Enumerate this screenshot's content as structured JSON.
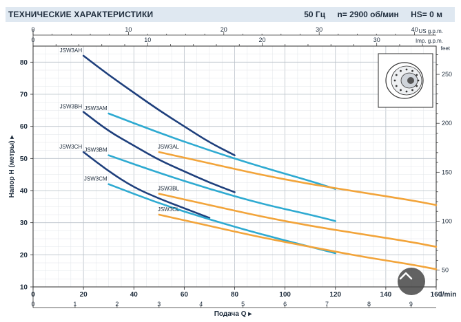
{
  "header": {
    "title": "ТЕХНИЧЕСКИЕ ХАРАКТЕРИСТИКИ",
    "freq": "50 Гц",
    "speed": "n= 2900 об/мин",
    "hs": "HS= 0 м"
  },
  "scroll_button_icon": "chevron-up-icon",
  "chart_data": {
    "type": "line",
    "xlabel": "Подача Q",
    "ylabel": "Напор H (метры)",
    "x_unit": "l/min",
    "xlim": [
      0,
      160
    ],
    "ylim": [
      10,
      85
    ],
    "x_ticks": [
      0,
      20,
      40,
      60,
      80,
      100,
      120,
      140,
      160
    ],
    "y_ticks": [
      10,
      20,
      30,
      40,
      50,
      60,
      70,
      80
    ],
    "m3h_ticks": [
      0,
      1,
      2,
      3,
      4,
      5,
      6,
      7,
      8,
      9
    ],
    "us_gpm": {
      "unit": "US g.p.m.",
      "ticks": [
        0,
        10,
        20,
        30,
        40
      ],
      "max": 42.27
    },
    "imp_gpm": {
      "unit": "Imp. g.p.m.",
      "ticks": [
        0,
        10,
        20,
        30
      ],
      "max": 35.19
    },
    "feet": {
      "unit": "feet",
      "ticks": [
        50,
        100,
        150,
        200,
        250
      ]
    },
    "colors": {
      "H": "#1e3f7c",
      "M": "#2eaad1",
      "L": "#f2a43a"
    },
    "series": [
      {
        "name": "JSW3AH",
        "group": "H",
        "x": [
          20,
          30,
          40,
          50,
          60,
          70,
          80
        ],
        "y": [
          82,
          76,
          70.5,
          65,
          60,
          55,
          51
        ]
      },
      {
        "name": "JSW3BH",
        "group": "H",
        "x": [
          20,
          30,
          40,
          50,
          60,
          70,
          80
        ],
        "y": [
          64.5,
          58.5,
          54,
          49.5,
          46,
          42.5,
          39.5
        ]
      },
      {
        "name": "JSW3CH",
        "group": "H",
        "x": [
          20,
          30,
          40,
          50,
          60,
          70
        ],
        "y": [
          52,
          46,
          41,
          37.5,
          34.5,
          31.5
        ]
      },
      {
        "name": "JSW3AM",
        "group": "M",
        "x": [
          30,
          50,
          70,
          90,
          110,
          120
        ],
        "y": [
          64,
          58,
          52.5,
          47.5,
          43,
          40.5
        ]
      },
      {
        "name": "JSW3BM",
        "group": "M",
        "x": [
          30,
          50,
          70,
          90,
          110,
          120
        ],
        "y": [
          51,
          45.5,
          40.5,
          36,
          32.5,
          30.5
        ]
      },
      {
        "name": "JSW3CM",
        "group": "M",
        "x": [
          30,
          50,
          70,
          90,
          110,
          120
        ],
        "y": [
          42,
          36,
          31,
          26.5,
          22.5,
          20.5
        ]
      },
      {
        "name": "JSW3AL",
        "group": "L",
        "x": [
          50,
          70,
          90,
          110,
          130,
          150,
          160
        ],
        "y": [
          52,
          48.5,
          45,
          42,
          39.5,
          37,
          35.5
        ]
      },
      {
        "name": "JSW3BL",
        "group": "L",
        "x": [
          50,
          70,
          90,
          110,
          130,
          150,
          160
        ],
        "y": [
          39,
          35.5,
          32,
          29,
          26.5,
          24,
          22.5
        ]
      },
      {
        "name": "JSW3CL",
        "group": "L",
        "x": [
          50,
          70,
          90,
          110,
          130,
          150,
          160
        ],
        "y": [
          32.5,
          29,
          25.5,
          22.5,
          19.5,
          17,
          15.5
        ]
      }
    ],
    "grid": true
  }
}
